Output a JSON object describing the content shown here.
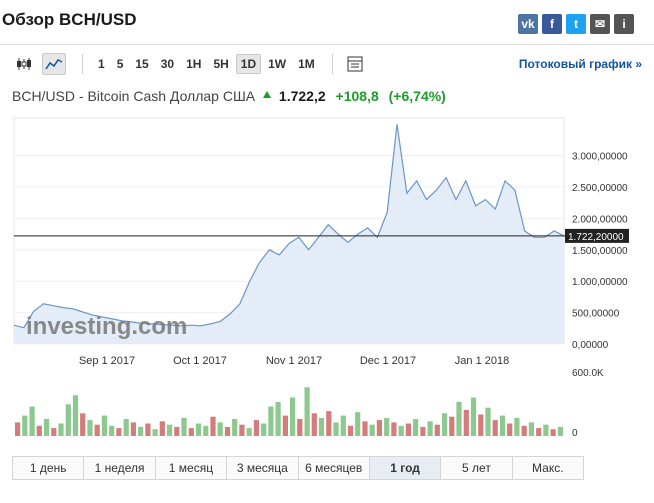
{
  "header": {
    "title": "Обзор BCH/USD"
  },
  "share": [
    {
      "name": "vk",
      "glyph": "vk",
      "color": "#4c75a3"
    },
    {
      "name": "facebook",
      "glyph": "f",
      "color": "#3b5998"
    },
    {
      "name": "twitter",
      "glyph": "t",
      "color": "#1da1f2"
    },
    {
      "name": "email",
      "glyph": "✉",
      "color": "#555555"
    },
    {
      "name": "info",
      "glyph": "i",
      "color": "#555555"
    }
  ],
  "toolbar": {
    "icons": [
      "candlestick-icon",
      "area-chart-icon",
      "table-icon"
    ],
    "intervals": [
      "1",
      "5",
      "15",
      "30",
      "1H",
      "5H",
      "1D",
      "1W",
      "1M"
    ],
    "selected_interval": "1D",
    "stream_link": "Потоковый график »"
  },
  "quote": {
    "name": "BCH/USD - Bitcoin Cash Доллар США",
    "last": "1.722,2",
    "change": "+108,8",
    "change_pct": "(+6,74%)"
  },
  "chart_data": {
    "type": "area",
    "xlabels": [
      "Sep 1 2017",
      "Oct 1 2017",
      "Nov 1 2017",
      "Dec 1 2017",
      "Jan 1 2018"
    ],
    "y_ticks": [
      "3.000,00000",
      "2.500,00000",
      "2.000,00000",
      "1.500,00000",
      "1.000,00000",
      "500,00000",
      "0,00000"
    ],
    "ylim": [
      0,
      3600
    ],
    "current_price_label": "1.722,20000",
    "current_price": 1722.2,
    "watermark": "investing.com",
    "price_series": [
      300,
      260,
      520,
      640,
      610,
      580,
      560,
      510,
      460,
      430,
      400,
      370,
      350,
      330,
      320,
      310,
      300,
      290,
      300,
      290,
      320,
      360,
      480,
      640,
      1000,
      1300,
      1500,
      1420,
      1600,
      1700,
      1500,
      1700,
      1900,
      1750,
      1620,
      1750,
      1850,
      1700,
      2100,
      3500,
      2400,
      2600,
      2300,
      2450,
      2650,
      2300,
      2600,
      2200,
      2300,
      2150,
      2600,
      2450,
      1800,
      1700,
      1700,
      1800,
      1722
    ],
    "volume_axis": [
      "600.0K",
      "0"
    ],
    "volume_series": [
      {
        "v": 120,
        "up": false
      },
      {
        "v": 180,
        "up": true
      },
      {
        "v": 260,
        "up": true
      },
      {
        "v": 90,
        "up": false
      },
      {
        "v": 150,
        "up": true
      },
      {
        "v": 70,
        "up": false
      },
      {
        "v": 110,
        "up": true
      },
      {
        "v": 280,
        "up": true
      },
      {
        "v": 360,
        "up": true
      },
      {
        "v": 200,
        "up": false
      },
      {
        "v": 140,
        "up": true
      },
      {
        "v": 100,
        "up": false
      },
      {
        "v": 180,
        "up": true
      },
      {
        "v": 90,
        "up": true
      },
      {
        "v": 70,
        "up": false
      },
      {
        "v": 150,
        "up": true
      },
      {
        "v": 120,
        "up": false
      },
      {
        "v": 80,
        "up": true
      },
      {
        "v": 110,
        "up": false
      },
      {
        "v": 60,
        "up": true
      },
      {
        "v": 130,
        "up": false
      },
      {
        "v": 100,
        "up": true
      },
      {
        "v": 80,
        "up": false
      },
      {
        "v": 160,
        "up": true
      },
      {
        "v": 70,
        "up": false
      },
      {
        "v": 110,
        "up": true
      },
      {
        "v": 90,
        "up": true
      },
      {
        "v": 170,
        "up": false
      },
      {
        "v": 120,
        "up": true
      },
      {
        "v": 80,
        "up": false
      },
      {
        "v": 150,
        "up": true
      },
      {
        "v": 100,
        "up": false
      },
      {
        "v": 70,
        "up": true
      },
      {
        "v": 140,
        "up": false
      },
      {
        "v": 110,
        "up": true
      },
      {
        "v": 260,
        "up": true
      },
      {
        "v": 300,
        "up": true
      },
      {
        "v": 180,
        "up": false
      },
      {
        "v": 340,
        "up": true
      },
      {
        "v": 150,
        "up": false
      },
      {
        "v": 430,
        "up": true
      },
      {
        "v": 200,
        "up": false
      },
      {
        "v": 160,
        "up": true
      },
      {
        "v": 220,
        "up": false
      },
      {
        "v": 120,
        "up": true
      },
      {
        "v": 180,
        "up": true
      },
      {
        "v": 90,
        "up": false
      },
      {
        "v": 210,
        "up": true
      },
      {
        "v": 130,
        "up": false
      },
      {
        "v": 100,
        "up": true
      },
      {
        "v": 140,
        "up": false
      },
      {
        "v": 160,
        "up": true
      },
      {
        "v": 120,
        "up": false
      },
      {
        "v": 90,
        "up": true
      },
      {
        "v": 110,
        "up": false
      },
      {
        "v": 150,
        "up": true
      },
      {
        "v": 80,
        "up": false
      },
      {
        "v": 130,
        "up": true
      },
      {
        "v": 100,
        "up": false
      },
      {
        "v": 200,
        "up": true
      },
      {
        "v": 170,
        "up": false
      },
      {
        "v": 300,
        "up": true
      },
      {
        "v": 230,
        "up": false
      },
      {
        "v": 340,
        "up": true
      },
      {
        "v": 190,
        "up": false
      },
      {
        "v": 250,
        "up": true
      },
      {
        "v": 140,
        "up": false
      },
      {
        "v": 180,
        "up": true
      },
      {
        "v": 110,
        "up": false
      },
      {
        "v": 160,
        "up": true
      },
      {
        "v": 90,
        "up": false
      },
      {
        "v": 120,
        "up": true
      },
      {
        "v": 70,
        "up": false
      },
      {
        "v": 100,
        "up": true
      },
      {
        "v": 60,
        "up": false
      },
      {
        "v": 80,
        "up": true
      }
    ]
  },
  "ranges": {
    "items": [
      "1 день",
      "1 неделя",
      "1 месяц",
      "3 месяца",
      "6 месяцев",
      "1 год",
      "5 лет",
      "Макс."
    ],
    "selected": "1 год"
  }
}
